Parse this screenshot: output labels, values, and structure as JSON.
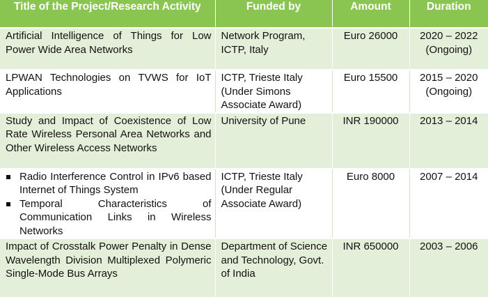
{
  "headers": {
    "title": "Title of the Project/Research Activity",
    "funded_by": "Funded by",
    "amount": "Amount",
    "duration": "Duration"
  },
  "rows": [
    {
      "title": "Artificial Intelligence of Things for Low Power Wide Area Networks",
      "funded_by": "Network Program, ICTP, Italy",
      "amount": "Euro 26000",
      "duration": "2020 – 2022",
      "duration_note": "(Ongoing)"
    },
    {
      "title": "LPWAN Technologies on TVWS for IoT Applications",
      "funded_by": "ICTP, Trieste Italy (Under Simons Associate Award)",
      "amount": "Euro 15500",
      "duration": "2015 – 2020",
      "duration_note": "(Ongoing)"
    },
    {
      "title": "Study and Impact of Coexistence of Low Rate Wireless Personal Area Networks and Other Wireless Access Networks",
      "funded_by": "University of Pune",
      "amount": "INR 190000",
      "duration": "2013 – 2014"
    },
    {
      "titles": [
        "Radio Interference Control in IPv6 based Internet of Things System",
        "Temporal Characteristics of Communication Links in Wireless Networks"
      ],
      "funded_by": "ICTP, Trieste Italy (Under Regular Associate Award)",
      "amount": "Euro 8000",
      "duration": "2007 – 2014"
    },
    {
      "title": "Impact of Crosstalk Power Penalty in Dense Wavelength Division Multiplexed Polymeric Single-Mode Bus Arrays",
      "funded_by": "Department of Science and Technology, Govt. of India",
      "amount": "INR 650000",
      "duration": "2003 – 2006"
    }
  ],
  "colors": {
    "header_bg": "#8ac551",
    "header_text": "#ffffff",
    "row_shade": "#e4efd9",
    "row_plain": "#ffffff"
  }
}
